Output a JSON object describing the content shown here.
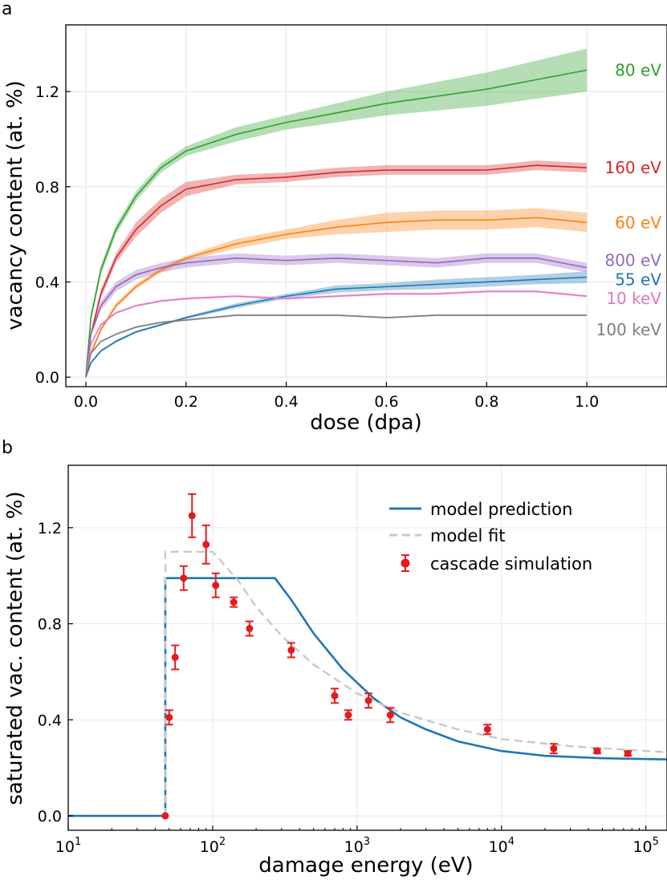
{
  "chart_data": [
    {
      "panel_label": "a",
      "type": "line",
      "xlabel": "dose (dpa)",
      "ylabel": "vacancy content (at. %)",
      "xlim": [
        -0.04,
        1.16
      ],
      "ylim": [
        -0.04,
        1.48
      ],
      "xticks": [
        0.0,
        0.2,
        0.4,
        0.6,
        0.8,
        1.0
      ],
      "xtick_labels": [
        "0.0",
        "0.2",
        "0.4",
        "0.6",
        "0.8",
        "1.0"
      ],
      "yticks": [
        0.0,
        0.4,
        0.8,
        1.2
      ],
      "ytick_labels": [
        "0.0",
        "0.4",
        "0.8",
        "1.2"
      ],
      "grid": true,
      "series": [
        {
          "name": "80 eV",
          "label": "80 eV",
          "color": "#2ca02c",
          "label_at": 1.29,
          "x": [
            0,
            0.01,
            0.03,
            0.06,
            0.1,
            0.15,
            0.2,
            0.3,
            0.4,
            0.5,
            0.6,
            0.7,
            0.8,
            0.9,
            1.0
          ],
          "y": [
            0,
            0.25,
            0.45,
            0.62,
            0.76,
            0.88,
            0.95,
            1.02,
            1.07,
            1.11,
            1.15,
            1.18,
            1.21,
            1.25,
            1.29
          ],
          "band": [
            0,
            0.02,
            0.02,
            0.02,
            0.02,
            0.02,
            0.02,
            0.03,
            0.03,
            0.04,
            0.05,
            0.06,
            0.07,
            0.08,
            0.09
          ]
        },
        {
          "name": "160 eV",
          "label": "160 eV",
          "color": "#d62728",
          "label_at": 0.88,
          "x": [
            0,
            0.01,
            0.03,
            0.06,
            0.1,
            0.15,
            0.2,
            0.3,
            0.4,
            0.5,
            0.6,
            0.7,
            0.8,
            0.9,
            1.0
          ],
          "y": [
            0,
            0.18,
            0.35,
            0.5,
            0.62,
            0.72,
            0.79,
            0.83,
            0.84,
            0.86,
            0.87,
            0.87,
            0.87,
            0.89,
            0.88
          ],
          "band": [
            0,
            0.01,
            0.02,
            0.02,
            0.03,
            0.03,
            0.03,
            0.02,
            0.02,
            0.02,
            0.02,
            0.02,
            0.02,
            0.02,
            0.02
          ]
        },
        {
          "name": "60 eV",
          "label": "60 eV",
          "color": "#ff7f0e",
          "label_at": 0.65,
          "x": [
            0,
            0.01,
            0.03,
            0.06,
            0.1,
            0.15,
            0.2,
            0.3,
            0.4,
            0.5,
            0.6,
            0.7,
            0.8,
            0.9,
            1.0
          ],
          "y": [
            0,
            0.1,
            0.2,
            0.3,
            0.38,
            0.45,
            0.5,
            0.56,
            0.6,
            0.63,
            0.65,
            0.66,
            0.66,
            0.67,
            0.65
          ],
          "band": [
            0,
            0.01,
            0.01,
            0.01,
            0.01,
            0.01,
            0.01,
            0.02,
            0.02,
            0.03,
            0.04,
            0.04,
            0.04,
            0.04,
            0.04
          ]
        },
        {
          "name": "800 eV",
          "label": "800 eV",
          "color": "#9467bd",
          "label_at": 0.49,
          "x": [
            0,
            0.01,
            0.03,
            0.06,
            0.1,
            0.15,
            0.2,
            0.3,
            0.4,
            0.5,
            0.6,
            0.7,
            0.8,
            0.9,
            1.0
          ],
          "y": [
            0,
            0.18,
            0.3,
            0.38,
            0.43,
            0.46,
            0.48,
            0.5,
            0.49,
            0.5,
            0.49,
            0.48,
            0.5,
            0.5,
            0.46
          ],
          "band": [
            0,
            0.01,
            0.02,
            0.02,
            0.02,
            0.02,
            0.02,
            0.02,
            0.02,
            0.02,
            0.02,
            0.02,
            0.02,
            0.02,
            0.02
          ]
        },
        {
          "name": "55 eV",
          "label": "55 eV",
          "color": "#1f77b4",
          "label_at": 0.41,
          "x": [
            0,
            0.01,
            0.03,
            0.06,
            0.1,
            0.15,
            0.2,
            0.3,
            0.4,
            0.5,
            0.6,
            0.7,
            0.8,
            0.9,
            1.0
          ],
          "y": [
            0,
            0.06,
            0.11,
            0.15,
            0.19,
            0.22,
            0.25,
            0.3,
            0.34,
            0.37,
            0.38,
            0.39,
            0.4,
            0.41,
            0.42
          ],
          "band": [
            0,
            0.005,
            0.005,
            0.005,
            0.005,
            0.005,
            0.005,
            0.01,
            0.01,
            0.015,
            0.015,
            0.02,
            0.02,
            0.02,
            0.025
          ]
        },
        {
          "name": "10 keV",
          "label": "10 keV",
          "color": "#e377c2",
          "label_at": 0.33,
          "x": [
            0,
            0.01,
            0.03,
            0.06,
            0.1,
            0.15,
            0.2,
            0.3,
            0.4,
            0.5,
            0.6,
            0.7,
            0.8,
            0.9,
            1.0
          ],
          "y": [
            0,
            0.14,
            0.22,
            0.27,
            0.3,
            0.32,
            0.33,
            0.34,
            0.33,
            0.34,
            0.35,
            0.35,
            0.36,
            0.36,
            0.34
          ],
          "band": [
            0,
            0.005,
            0.005,
            0.005,
            0.005,
            0.005,
            0.005,
            0.005,
            0.005,
            0.005,
            0.005,
            0.005,
            0.005,
            0.005,
            0.005
          ]
        },
        {
          "name": "100 keV",
          "label": "100 keV",
          "color": "#7f7f7f",
          "label_at": 0.2,
          "x": [
            0,
            0.01,
            0.03,
            0.06,
            0.1,
            0.15,
            0.2,
            0.3,
            0.4,
            0.5,
            0.6,
            0.7,
            0.8,
            0.9,
            1.0
          ],
          "y": [
            0,
            0.1,
            0.15,
            0.18,
            0.21,
            0.23,
            0.24,
            0.26,
            0.26,
            0.26,
            0.25,
            0.26,
            0.26,
            0.26,
            0.26
          ],
          "band": [
            0,
            0.004,
            0.004,
            0.004,
            0.004,
            0.004,
            0.004,
            0.004,
            0.004,
            0.004,
            0.004,
            0.004,
            0.004,
            0.004,
            0.004
          ]
        }
      ]
    },
    {
      "panel_label": "b",
      "type": "line",
      "x_scale": "log",
      "xlabel": "damage energy (eV)",
      "ylabel": "saturated vac. content (at. %)",
      "xlim": [
        10,
        140000
      ],
      "ylim": [
        -0.06,
        1.46
      ],
      "xticks": [
        10,
        100,
        1000,
        10000,
        100000
      ],
      "xtick_labels": [
        {
          "base": "10",
          "exp": "1"
        },
        {
          "base": "10",
          "exp": "2"
        },
        {
          "base": "10",
          "exp": "3"
        },
        {
          "base": "10",
          "exp": "4"
        },
        {
          "base": "10",
          "exp": "5"
        }
      ],
      "yticks": [
        0.0,
        0.4,
        0.8,
        1.2
      ],
      "ytick_labels": [
        "0.0",
        "0.4",
        "0.8",
        "1.2"
      ],
      "grid": true,
      "legend": {
        "placement": "top-right",
        "entries": [
          "model prediction",
          "model fit",
          "cascade simulation"
        ]
      },
      "series": [
        {
          "name": "model prediction",
          "style": "solid",
          "color": "#1f77b4",
          "x": [
            10,
            47,
            47,
            270,
            350,
            500,
            800,
            1300,
            2000,
            3000,
            5000,
            10000,
            20000,
            50000,
            140000
          ],
          "y": [
            0,
            0,
            0.99,
            0.99,
            0.9,
            0.76,
            0.61,
            0.49,
            0.41,
            0.36,
            0.31,
            0.27,
            0.25,
            0.24,
            0.235
          ]
        },
        {
          "name": "model fit",
          "style": "dashed",
          "color": "#c8c8c8",
          "x": [
            47,
            47,
            100,
            150,
            200,
            300,
            500,
            1000,
            2000,
            5000,
            10000,
            30000,
            140000
          ],
          "y": [
            0,
            1.1,
            1.1,
            0.98,
            0.87,
            0.75,
            0.63,
            0.51,
            0.43,
            0.36,
            0.32,
            0.29,
            0.265
          ]
        },
        {
          "name": "cascade simulation",
          "style": "errorbar",
          "color": "#e41a1c",
          "x": [
            47,
            50,
            55,
            63,
            72,
            90,
            105,
            140,
            180,
            350,
            700,
            870,
            1200,
            1700,
            8000,
            23000,
            46000,
            75000
          ],
          "y": [
            0.0,
            0.41,
            0.66,
            0.99,
            1.25,
            1.13,
            0.96,
            0.89,
            0.78,
            0.69,
            0.5,
            0.42,
            0.48,
            0.42,
            0.36,
            0.28,
            0.27,
            0.26
          ],
          "yerr": [
            0.0,
            0.03,
            0.05,
            0.05,
            0.09,
            0.08,
            0.05,
            0.02,
            0.03,
            0.03,
            0.03,
            0.02,
            0.03,
            0.03,
            0.02,
            0.02,
            0.01,
            0.01
          ]
        }
      ]
    }
  ]
}
